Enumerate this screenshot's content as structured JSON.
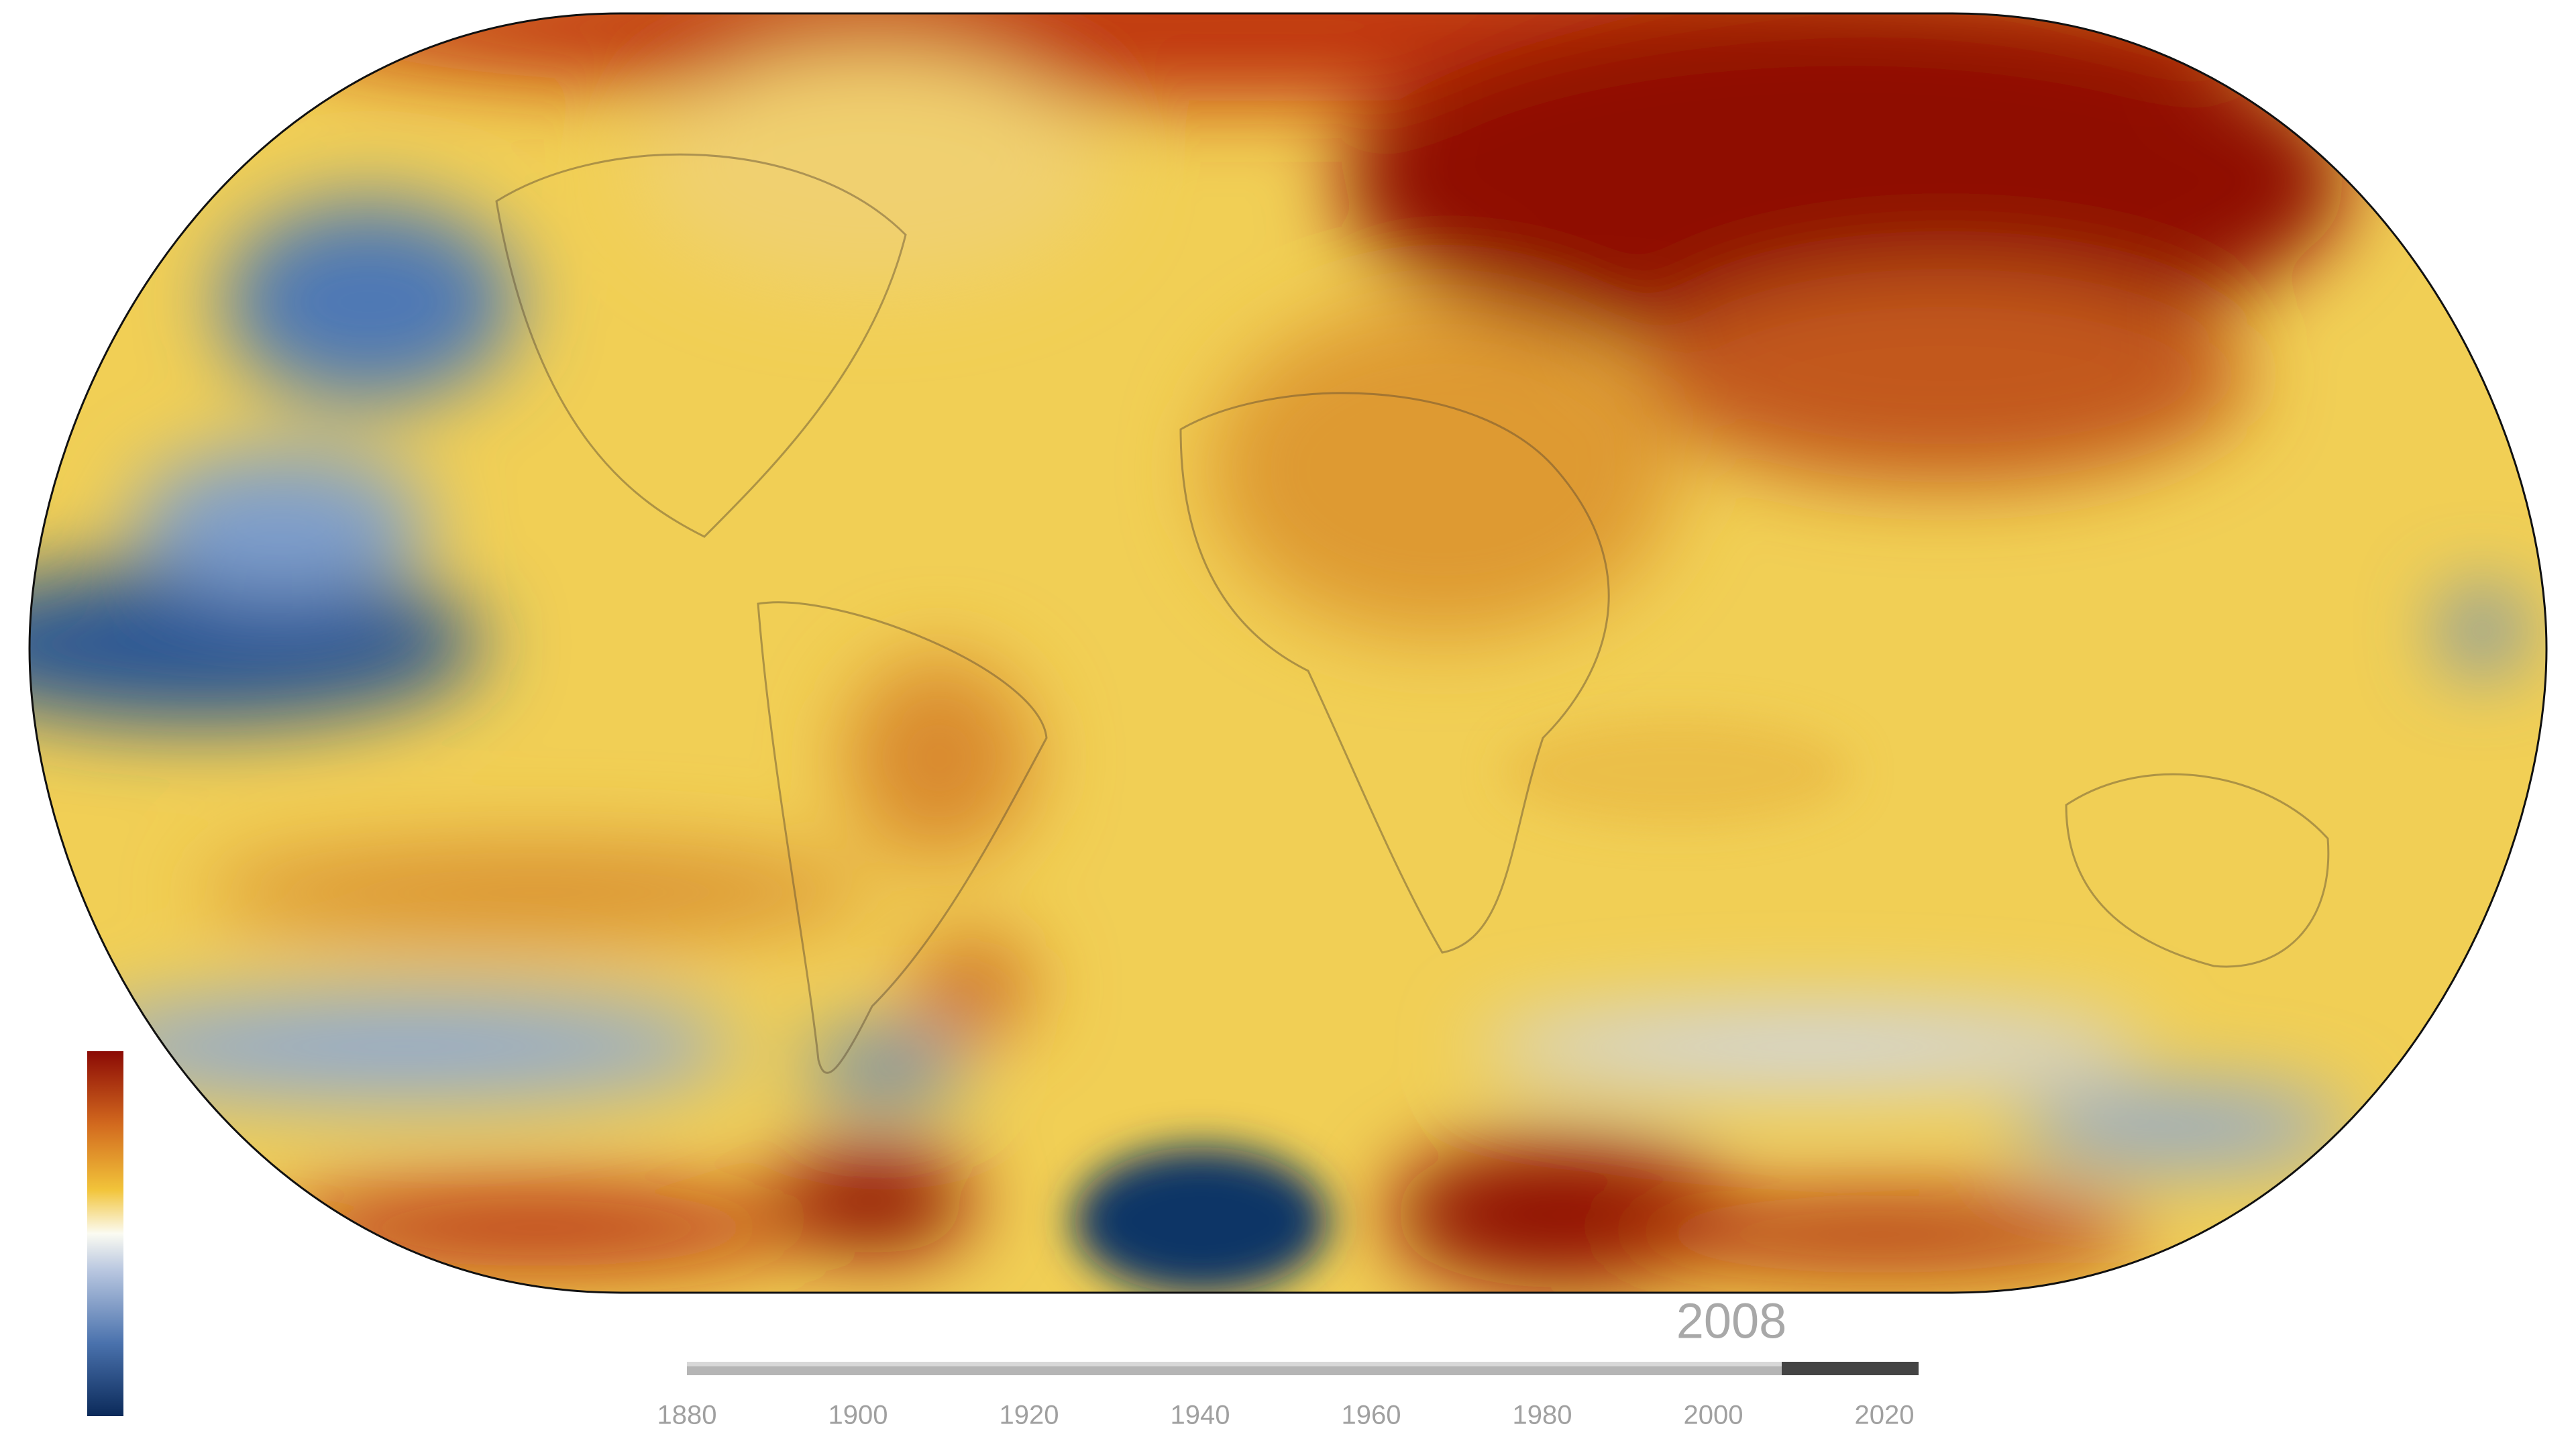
{
  "timeline": {
    "year": 2008,
    "xlim": [
      1880,
      2024
    ],
    "xticks": [
      1880,
      1900,
      1920,
      1940,
      1960,
      1980,
      2000,
      2020
    ]
  }
}
